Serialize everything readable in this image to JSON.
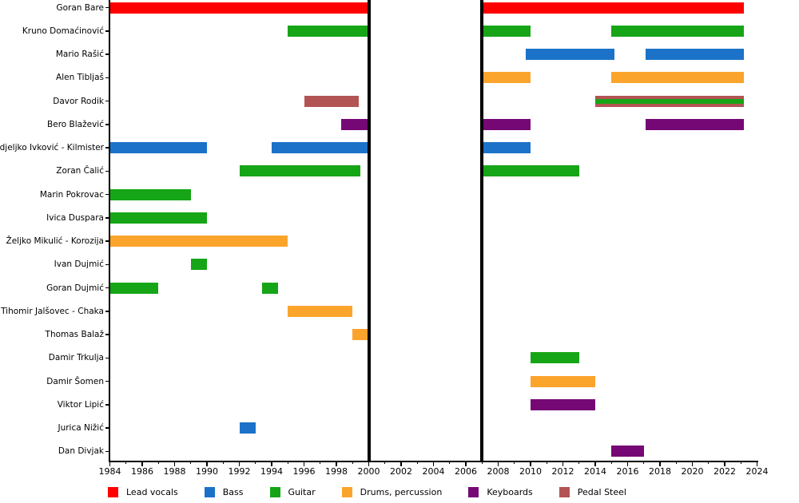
{
  "chart_data": {
    "type": "timeline-gantt",
    "description": "Band members timeline showing each member's active periods by instrument role",
    "x_axis": {
      "min": 1984,
      "max": 2024,
      "major_tick_labels": [
        1984,
        1986,
        1988,
        1990,
        1992,
        1994,
        1996,
        1998,
        2000,
        2002,
        2004,
        2006,
        2008,
        2010,
        2012,
        2014,
        2016,
        2018,
        2020,
        2022,
        2024
      ],
      "minor_tick_step": 1
    },
    "hiatus_years": [
      2000,
      2007
    ],
    "role_colors": {
      "Lead vocals": "#FF0000",
      "Bass": "#1B72C8",
      "Guitar": "#16A516",
      "Drums, percussion": "#FBA42C",
      "Keyboards": "#750875",
      "Pedal Steel": "#B35454"
    },
    "legend": [
      {
        "label": "Lead vocals",
        "color": "#FF0000"
      },
      {
        "label": "Bass",
        "color": "#1B72C8"
      },
      {
        "label": "Guitar",
        "color": "#16A516"
      },
      {
        "label": "Drums, percussion",
        "color": "#FBA42C"
      },
      {
        "label": "Keyboards",
        "color": "#750875"
      },
      {
        "label": "Pedal Steel",
        "color": "#B35454"
      }
    ],
    "members": [
      {
        "name": "Goran Bare",
        "segments": [
          {
            "role": "Lead vocals",
            "start": 1984,
            "end": 2000
          },
          {
            "role": "Lead vocals",
            "start": 2007.1,
            "end": 2023.2
          }
        ]
      },
      {
        "name": "Kruno Domaćinović",
        "segments": [
          {
            "role": "Guitar",
            "start": 1995,
            "end": 2000
          },
          {
            "role": "Guitar",
            "start": 2007.1,
            "end": 2010
          },
          {
            "role": "Guitar",
            "start": 2015,
            "end": 2023.2
          }
        ]
      },
      {
        "name": "Mario Rašić",
        "segments": [
          {
            "role": "Bass",
            "start": 2009.7,
            "end": 2015.2
          },
          {
            "role": "Bass",
            "start": 2017.1,
            "end": 2023.2
          }
        ]
      },
      {
        "name": "Alen Tibljaš",
        "segments": [
          {
            "role": "Drums, percussion",
            "start": 2007.1,
            "end": 2010
          },
          {
            "role": "Drums, percussion",
            "start": 2015,
            "end": 2023.2
          }
        ]
      },
      {
        "name": "Davor Rodik",
        "segments": [
          {
            "role": "Pedal Steel",
            "start": 1996,
            "end": 1999.4
          },
          {
            "role": "Pedal Steel",
            "start": 2014,
            "end": 2023.2
          },
          {
            "role": "Guitar",
            "start": 2014,
            "end": 2023.2,
            "overlay": true
          }
        ]
      },
      {
        "name": "Bero Blažević",
        "segments": [
          {
            "role": "Keyboards",
            "start": 1998.3,
            "end": 2000
          },
          {
            "role": "Keyboards",
            "start": 2007.1,
            "end": 2010
          },
          {
            "role": "Keyboards",
            "start": 2017.1,
            "end": 2023.2
          }
        ]
      },
      {
        "name": "Nedjeljko Ivković - Kilmister",
        "segments": [
          {
            "role": "Bass",
            "start": 1984,
            "end": 1990
          },
          {
            "role": "Bass",
            "start": 1994,
            "end": 2000
          },
          {
            "role": "Bass",
            "start": 2007.1,
            "end": 2010
          }
        ]
      },
      {
        "name": "Zoran Čalić",
        "segments": [
          {
            "role": "Guitar",
            "start": 1992,
            "end": 1999.5
          },
          {
            "role": "Guitar",
            "start": 2007.1,
            "end": 2013
          }
        ]
      },
      {
        "name": "Marin Pokrovac",
        "segments": [
          {
            "role": "Guitar",
            "start": 1984,
            "end": 1989
          }
        ]
      },
      {
        "name": "Ivica Duspara",
        "segments": [
          {
            "role": "Guitar",
            "start": 1984,
            "end": 1990
          }
        ]
      },
      {
        "name": "Željko Mikulić - Korozija",
        "segments": [
          {
            "role": "Drums, percussion",
            "start": 1984,
            "end": 1995
          }
        ]
      },
      {
        "name": "Ivan Dujmić",
        "segments": [
          {
            "role": "Guitar",
            "start": 1989,
            "end": 1990
          }
        ]
      },
      {
        "name": "Goran Dujmić",
        "segments": [
          {
            "role": "Guitar",
            "start": 1984,
            "end": 1987
          },
          {
            "role": "Guitar",
            "start": 1993.4,
            "end": 1994.4
          }
        ]
      },
      {
        "name": "Tihomir Jalšovec - Chaka",
        "segments": [
          {
            "role": "Drums, percussion",
            "start": 1995,
            "end": 1999
          }
        ]
      },
      {
        "name": "Thomas Balaž",
        "segments": [
          {
            "role": "Drums, percussion",
            "start": 1999,
            "end": 2000
          }
        ]
      },
      {
        "name": "Damir Trkulja",
        "segments": [
          {
            "role": "Guitar",
            "start": 2010,
            "end": 2013
          }
        ]
      },
      {
        "name": "Damir Šomen",
        "segments": [
          {
            "role": "Drums, percussion",
            "start": 2010,
            "end": 2014
          }
        ]
      },
      {
        "name": "Viktor Lipić",
        "segments": [
          {
            "role": "Keyboards",
            "start": 2010,
            "end": 2014
          }
        ]
      },
      {
        "name": "Jurica Nižić",
        "segments": [
          {
            "role": "Bass",
            "start": 1992,
            "end": 1993
          }
        ]
      },
      {
        "name": "Dan Divjak",
        "segments": [
          {
            "role": "Keyboards",
            "start": 2015,
            "end": 2017
          }
        ]
      }
    ]
  }
}
